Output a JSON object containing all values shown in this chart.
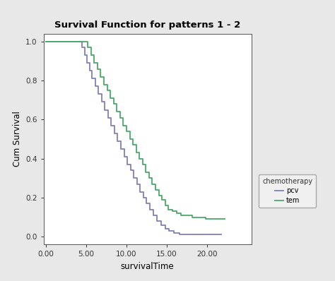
{
  "title": "Survival Function for patterns 1 - 2",
  "xlabel": "survivalTime",
  "ylabel": "Cum Survival",
  "xlim": [
    -0.3,
    25.5
  ],
  "ylim": [
    -0.04,
    1.04
  ],
  "xticks": [
    0.0,
    5.0,
    10.0,
    15.0,
    20.0
  ],
  "yticks": [
    0.0,
    0.2,
    0.4,
    0.6,
    0.8,
    1.0
  ],
  "legend_title": "chemotherapy",
  "legend_labels": [
    "pcv",
    "tem"
  ],
  "pcv_color": "#8080bb",
  "tem_color": "#4aaa6a",
  "outer_bg": "#e8e8e8",
  "plot_bg": "#ffffff",
  "pcv_times": [
    0.0,
    4.2,
    4.5,
    4.8,
    5.1,
    5.4,
    5.7,
    6.1,
    6.5,
    6.9,
    7.3,
    7.7,
    8.1,
    8.5,
    8.9,
    9.3,
    9.7,
    10.1,
    10.5,
    10.9,
    11.3,
    11.7,
    12.1,
    12.5,
    12.9,
    13.3,
    13.8,
    14.3,
    14.8,
    15.3,
    15.9,
    16.6,
    17.2,
    21.8
  ],
  "pcv_survival": [
    1.0,
    1.0,
    0.97,
    0.93,
    0.89,
    0.85,
    0.81,
    0.77,
    0.73,
    0.69,
    0.65,
    0.61,
    0.57,
    0.53,
    0.49,
    0.45,
    0.41,
    0.37,
    0.34,
    0.3,
    0.27,
    0.23,
    0.2,
    0.17,
    0.14,
    0.11,
    0.08,
    0.06,
    0.04,
    0.03,
    0.02,
    0.01,
    0.01,
    0.01
  ],
  "tem_times": [
    0.0,
    4.9,
    5.2,
    5.6,
    6.0,
    6.4,
    6.8,
    7.2,
    7.6,
    8.0,
    8.4,
    8.8,
    9.2,
    9.6,
    10.0,
    10.4,
    10.8,
    11.2,
    11.6,
    12.0,
    12.4,
    12.8,
    13.2,
    13.6,
    14.0,
    14.4,
    14.8,
    15.2,
    15.7,
    16.2,
    16.8,
    17.5,
    18.2,
    19.0,
    19.8,
    20.8,
    21.8,
    22.2
  ],
  "tem_survival": [
    1.0,
    1.0,
    0.97,
    0.93,
    0.89,
    0.86,
    0.82,
    0.78,
    0.75,
    0.71,
    0.68,
    0.64,
    0.61,
    0.57,
    0.54,
    0.5,
    0.47,
    0.43,
    0.4,
    0.37,
    0.33,
    0.3,
    0.27,
    0.24,
    0.21,
    0.19,
    0.16,
    0.14,
    0.13,
    0.12,
    0.11,
    0.11,
    0.1,
    0.1,
    0.09,
    0.09,
    0.09,
    0.09
  ]
}
